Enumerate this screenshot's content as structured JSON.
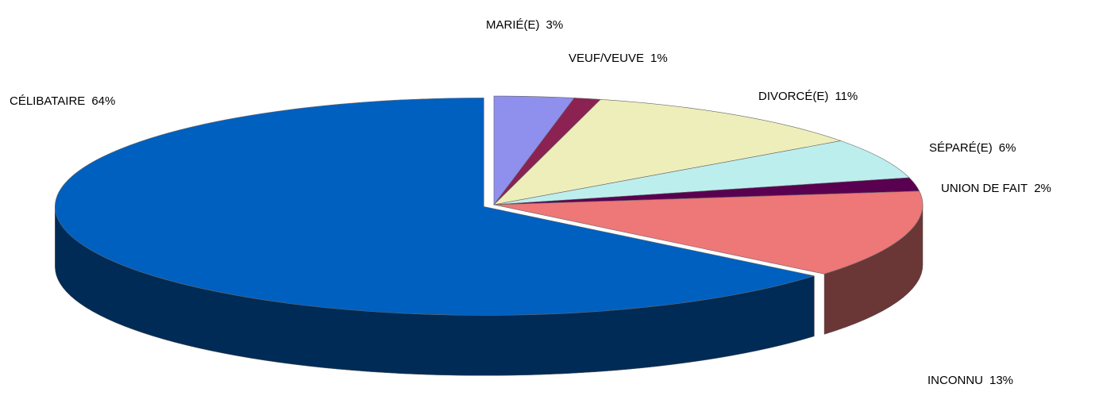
{
  "chart_data": {
    "type": "pie",
    "categories": [
      "MARIÉ(E)",
      "VEUF/VEUVE",
      "DIVORCÉ(E)",
      "SÉPARÉ(E)",
      "UNION DE FAIT",
      "INCONNU",
      "CÉLIBATAIRE"
    ],
    "values": [
      3,
      1,
      11,
      6,
      2,
      13,
      64
    ],
    "value_labels": [
      "3%",
      "1%",
      "11%",
      "6%",
      "2%",
      "13%",
      "64%"
    ],
    "colors": [
      "#8f8fee",
      "#8b2252",
      "#eeeebb",
      "#bdeeee",
      "#5a0050",
      "#ee7777",
      "#0060c0"
    ]
  }
}
